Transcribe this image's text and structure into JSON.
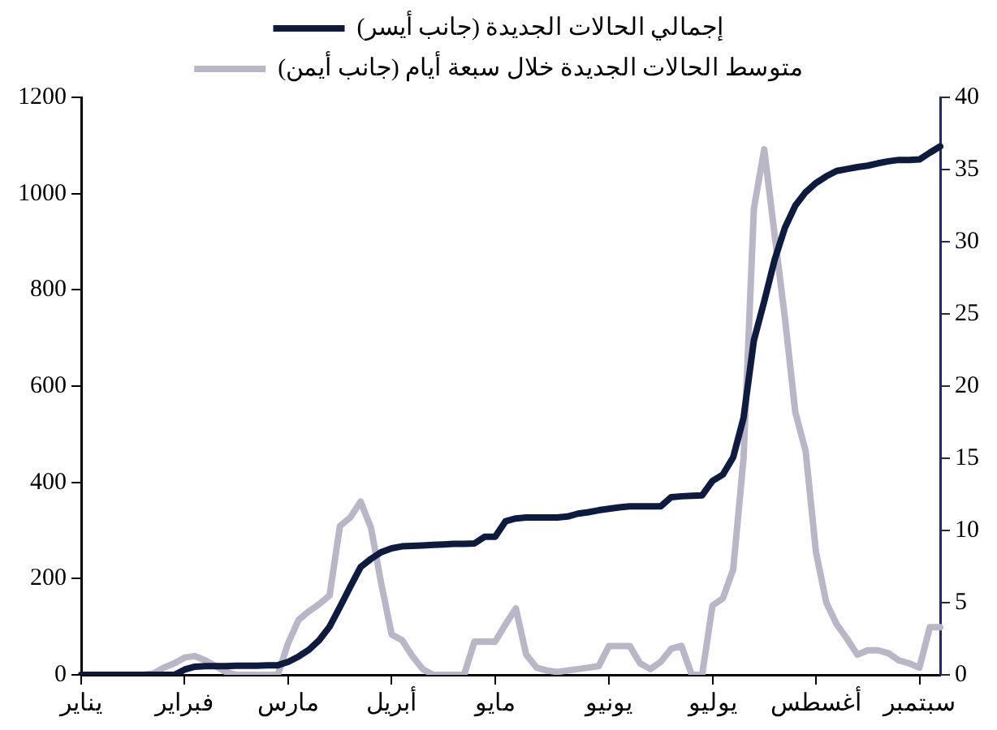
{
  "chart_data": {
    "type": "line",
    "legend": "top",
    "grid": false,
    "marker": "none",
    "line_style": "solid",
    "categories": [
      "يناير",
      null,
      null,
      null,
      null,
      null,
      null,
      null,
      null,
      null,
      "فبراير",
      null,
      null,
      null,
      null,
      null,
      null,
      null,
      null,
      null,
      "مارس",
      null,
      null,
      null,
      null,
      null,
      null,
      null,
      null,
      null,
      "أبريل",
      null,
      null,
      null,
      null,
      null,
      null,
      null,
      null,
      null,
      "مايو",
      null,
      null,
      null,
      null,
      null,
      null,
      null,
      null,
      null,
      null,
      "يونيو",
      null,
      null,
      null,
      null,
      null,
      null,
      null,
      null,
      null,
      "يوليو",
      null,
      null,
      null,
      null,
      null,
      null,
      null,
      null,
      null,
      "أغسطس",
      null,
      null,
      null,
      null,
      null,
      null,
      null,
      null,
      null,
      "سبتمبر",
      null,
      null
    ],
    "ylim": [
      0,
      1200
    ],
    "yticks": [
      0,
      200,
      400,
      600,
      800,
      1000,
      1200
    ],
    "y2lim": [
      0,
      40
    ],
    "y2ticks": [
      0,
      5,
      10,
      15,
      20,
      25,
      30,
      35,
      40
    ],
    "series": [
      {
        "name": "إجمالي الحالات الجديدة (جانب أيسر)",
        "color": "#0d1b3e",
        "values": [
          0,
          0,
          0,
          0,
          0,
          0,
          0,
          0,
          0,
          0,
          11,
          17,
          18,
          18,
          18,
          19,
          19,
          19,
          20,
          20,
          27,
          38,
          52,
          72,
          100,
          141,
          183,
          224,
          241,
          255,
          263,
          267,
          268,
          269,
          270,
          271,
          272,
          272,
          273,
          287,
          287,
          319,
          325,
          327,
          327,
          327,
          327,
          329,
          335,
          338,
          342,
          345,
          348,
          350,
          350,
          350,
          350,
          369,
          371,
          372,
          373,
          403,
          416,
          452,
          534,
          695,
          776,
          862,
          929,
          975,
          1003,
          1022,
          1036,
          1047,
          1051,
          1055,
          1058,
          1063,
          1067,
          1070,
          1070,
          1071,
          1085,
          1098
        ]
      },
      {
        "name": "متوسط الحالات الجديدة خلال سبعة أيام (جانب أيمن)",
        "color": "#bbb5c8",
        "axis": "y2",
        "values": [
          0,
          0,
          0,
          0,
          0,
          0,
          0,
          0.1,
          0.5,
          0.8,
          1.2,
          1.3,
          1.0,
          0.6,
          0.2,
          0,
          0,
          0,
          0,
          0,
          2.2,
          3.8,
          4.4,
          4.9,
          5.5,
          10.3,
          10.9,
          12.0,
          10.2,
          6.3,
          2.8,
          2.4,
          1.3,
          0.4,
          0,
          0,
          0,
          0,
          2.3,
          2.3,
          2.3,
          3.5,
          4.6,
          1.4,
          0.5,
          0.3,
          0.2,
          0.3,
          0.4,
          0.5,
          0.6,
          2.0,
          2.0,
          2.0,
          0.8,
          0.4,
          0.9,
          1.8,
          2.0,
          0,
          0,
          4.8,
          5.3,
          7.3,
          15.0,
          32.3,
          36.4,
          30.5,
          24.7,
          18.2,
          15.5,
          8.5,
          5.0,
          3.5,
          2.5,
          1.4,
          1.7,
          1.7,
          1.5,
          1.0,
          0.8,
          0.5,
          3.3,
          3.3
        ]
      }
    ]
  }
}
